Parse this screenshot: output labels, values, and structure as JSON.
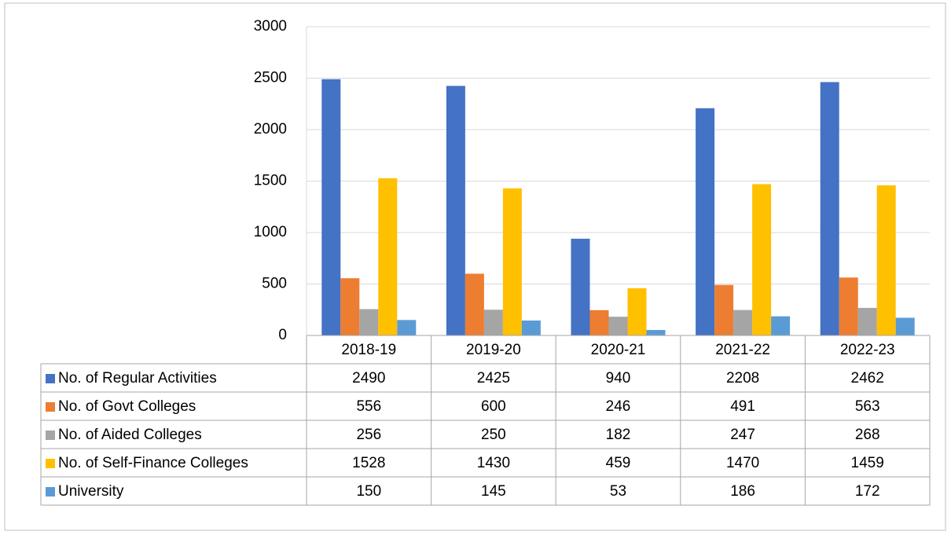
{
  "chart_data": {
    "type": "bar",
    "categories": [
      "2018-19",
      "2019-20",
      "2020-21",
      "2021-22",
      "2022-23"
    ],
    "series": [
      {
        "name": "No. of Regular Activities",
        "color": "#4472c4",
        "values": [
          2490,
          2425,
          940,
          2208,
          2462
        ]
      },
      {
        "name": "No. of Govt Colleges",
        "color": "#ed7d31",
        "values": [
          556,
          600,
          246,
          491,
          563
        ]
      },
      {
        "name": "No. of Aided Colleges",
        "color": "#a5a5a5",
        "values": [
          256,
          250,
          182,
          247,
          268
        ]
      },
      {
        "name": "No. of Self-Finance Colleges",
        "color": "#ffc000",
        "values": [
          1528,
          1430,
          459,
          1470,
          1459
        ]
      },
      {
        "name": "University",
        "color": "#5b9bd5",
        "values": [
          150,
          145,
          53,
          186,
          172
        ]
      }
    ],
    "ylim": [
      0,
      3000
    ],
    "yticks": [
      0,
      500,
      1000,
      1500,
      2000,
      2500,
      3000
    ],
    "grid": true,
    "data_table": true
  }
}
